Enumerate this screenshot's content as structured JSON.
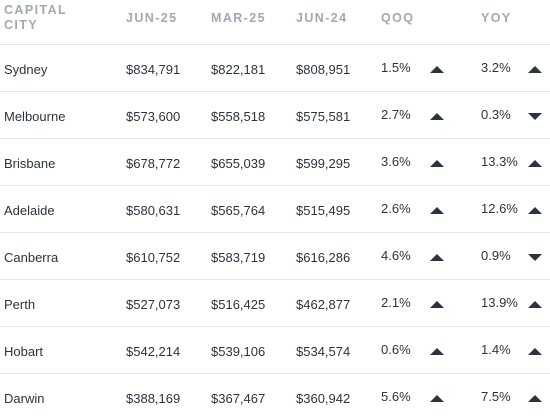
{
  "headers": {
    "city": "CAPITAL CITY",
    "jun25": "JUN-25",
    "mar25": "MAR-25",
    "jun24": "JUN-24",
    "qoq": "QOQ",
    "yoy": "YOY"
  },
  "rows": [
    {
      "city": "Sydney",
      "jun25": "$834,791",
      "mar25": "$822,181",
      "jun24": "$808,951",
      "qoq": "1.5%",
      "qoq_dir": "up",
      "yoy": "3.2%",
      "yoy_dir": "up"
    },
    {
      "city": "Melbourne",
      "jun25": "$573,600",
      "mar25": "$558,518",
      "jun24": "$575,581",
      "qoq": "2.7%",
      "qoq_dir": "up",
      "yoy": "0.3%",
      "yoy_dir": "down"
    },
    {
      "city": "Brisbane",
      "jun25": "$678,772",
      "mar25": "$655,039",
      "jun24": "$599,295",
      "qoq": "3.6%",
      "qoq_dir": "up",
      "yoy": "13.3%",
      "yoy_dir": "up"
    },
    {
      "city": "Adelaide",
      "jun25": "$580,631",
      "mar25": "$565,764",
      "jun24": "$515,495",
      "qoq": "2.6%",
      "qoq_dir": "up",
      "yoy": "12.6%",
      "yoy_dir": "up"
    },
    {
      "city": "Canberra",
      "jun25": "$610,752",
      "mar25": "$583,719",
      "jun24": "$616,286",
      "qoq": "4.6%",
      "qoq_dir": "up",
      "yoy": "0.9%",
      "yoy_dir": "down"
    },
    {
      "city": "Perth",
      "jun25": "$527,073",
      "mar25": "$516,425",
      "jun24": "$462,877",
      "qoq": "2.1%",
      "qoq_dir": "up",
      "yoy": "13.9%",
      "yoy_dir": "up"
    },
    {
      "city": "Hobart",
      "jun25": "$542,214",
      "mar25": "$539,106",
      "jun24": "$534,574",
      "qoq": "0.6%",
      "qoq_dir": "up",
      "yoy": "1.4%",
      "yoy_dir": "up"
    },
    {
      "city": "Darwin",
      "jun25": "$388,169",
      "mar25": "$367,467",
      "jun24": "$360,942",
      "qoq": "5.6%",
      "qoq_dir": "up",
      "yoy": "7.5%",
      "yoy_dir": "up"
    }
  ]
}
